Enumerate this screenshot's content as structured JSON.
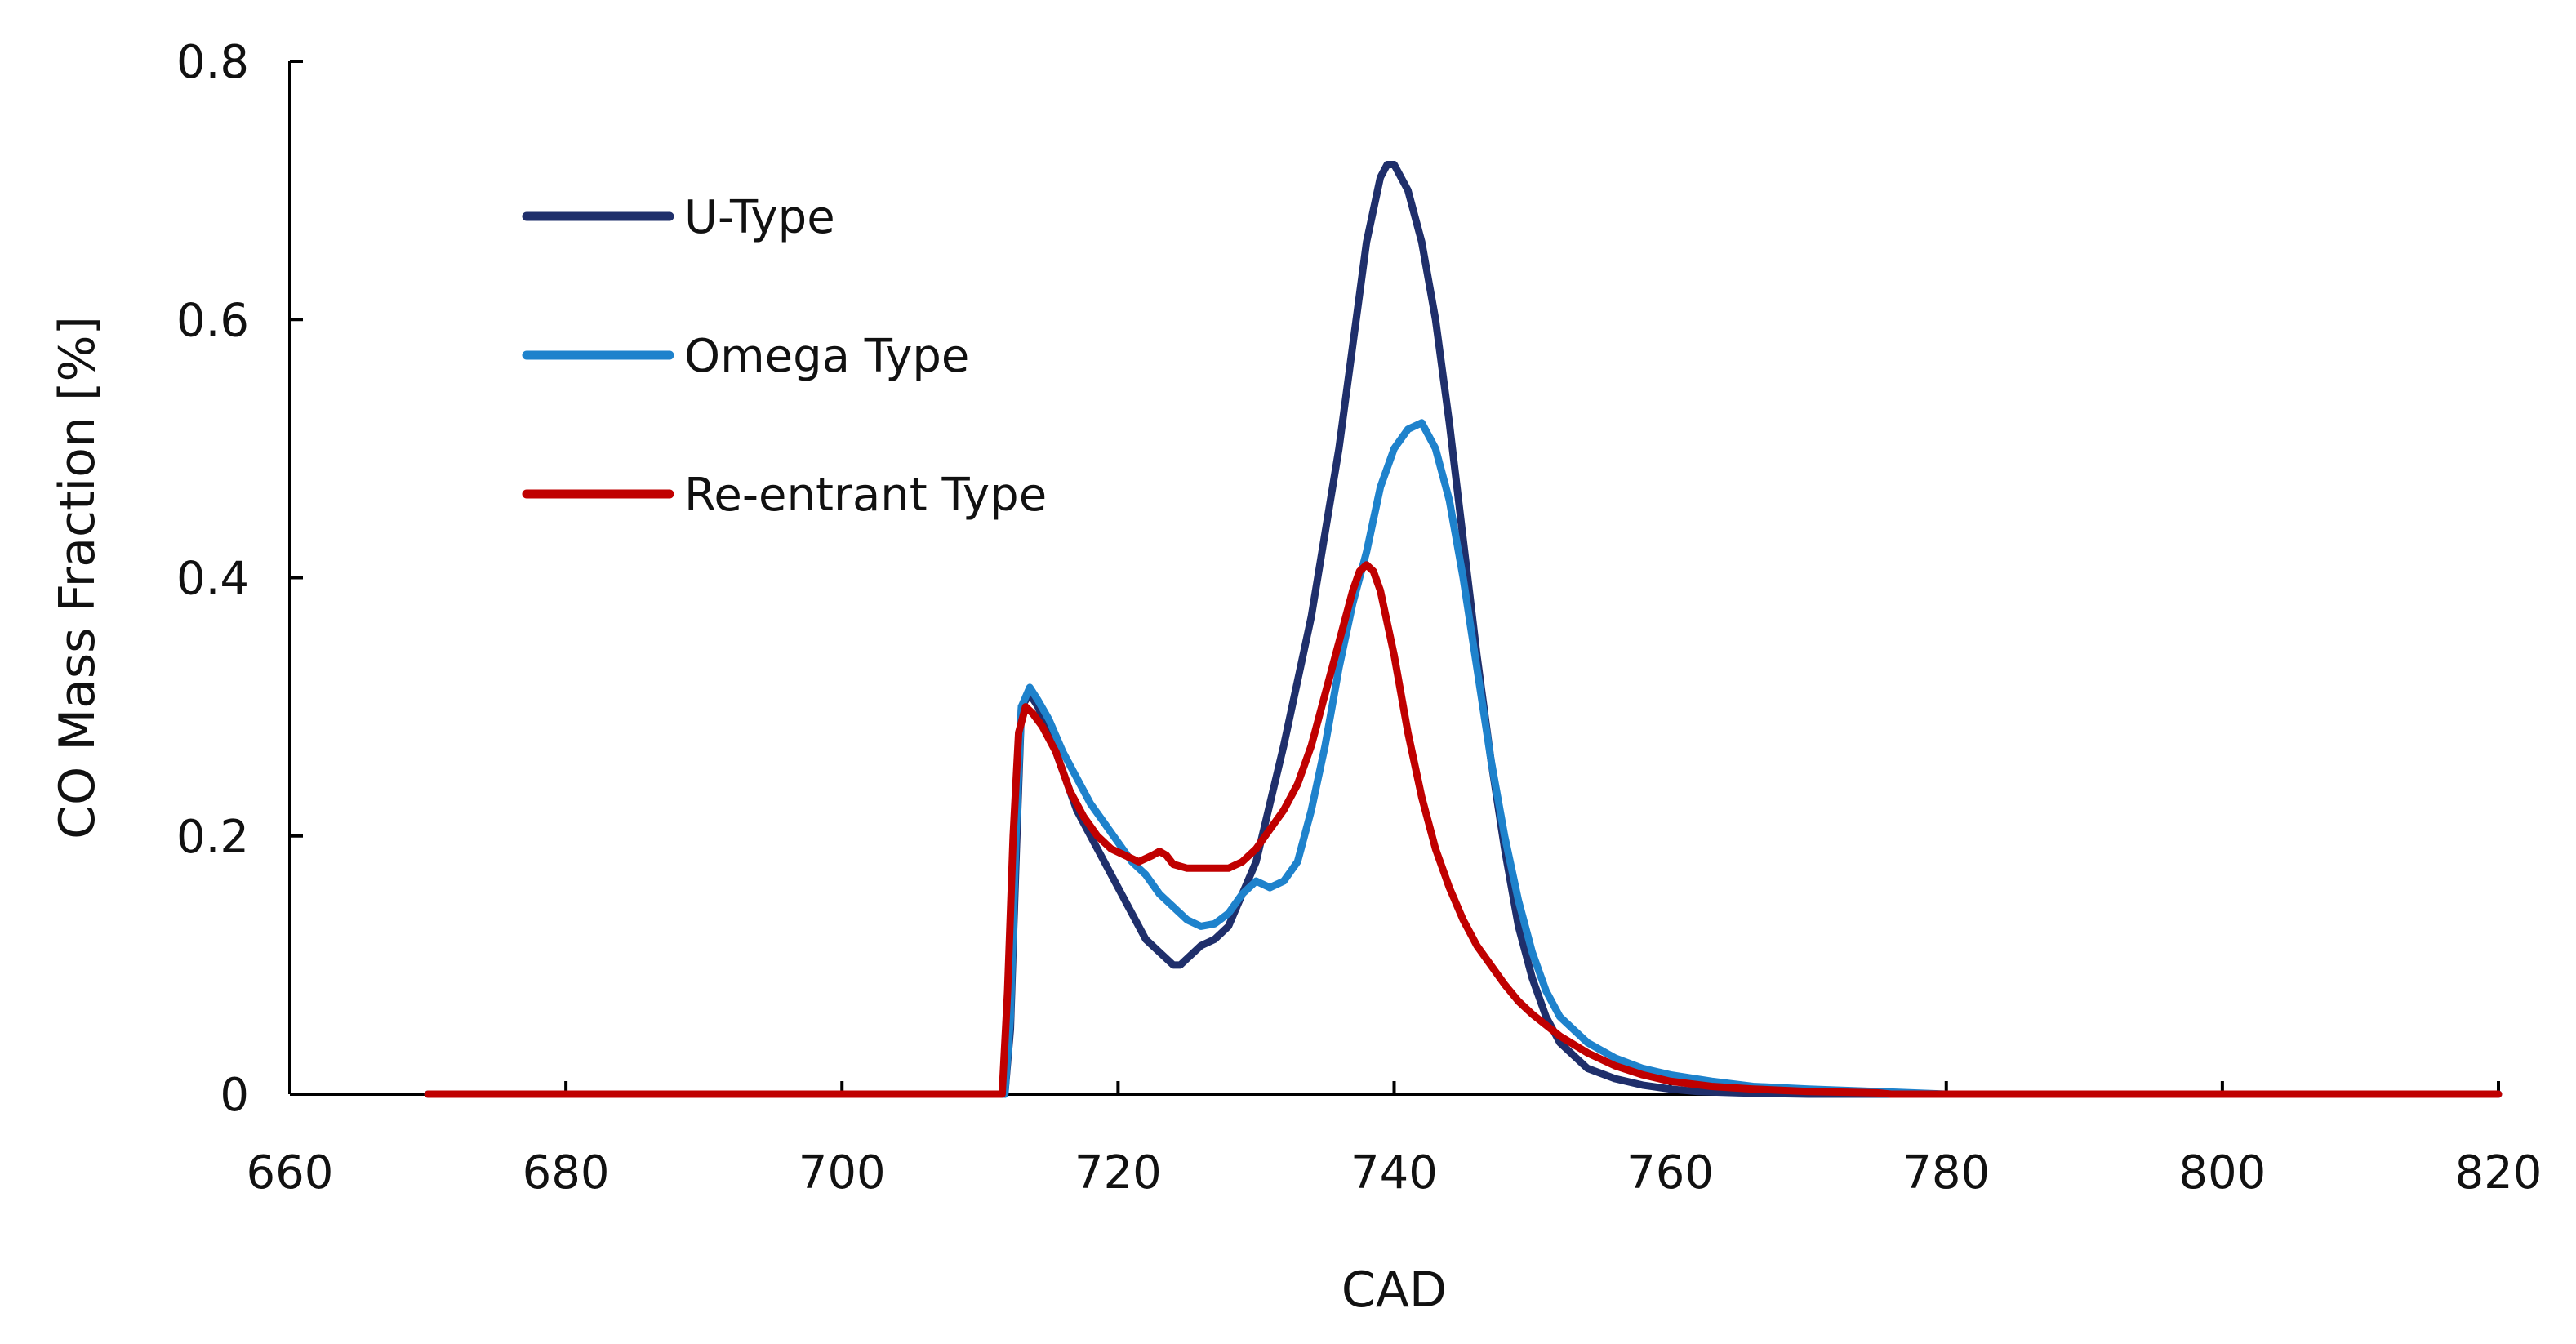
{
  "chart_data": {
    "type": "line",
    "title": "",
    "xlabel": "CAD",
    "ylabel": "CO Mass Fraction [%]",
    "xlim": [
      660,
      820
    ],
    "ylim": [
      0,
      0.8
    ],
    "xticks": [
      660,
      680,
      700,
      720,
      740,
      760,
      780,
      800,
      820
    ],
    "xtick_labels": [
      "660",
      "680",
      "700",
      "720",
      "740",
      "760",
      "780",
      "800",
      "820"
    ],
    "yticks": [
      0,
      0.2,
      0.4,
      0.6,
      0.8
    ],
    "ytick_labels": [
      "0",
      "0.2",
      "0.4",
      "0.6",
      "0.8"
    ],
    "grid": false,
    "legend_position": "top-left",
    "series": [
      {
        "name": "U-Type",
        "color": "#1f2f6b",
        "x": [
          670,
          700,
          711.8,
          712.2,
          712.6,
          713.0,
          713.6,
          714.2,
          715.0,
          716.0,
          717.0,
          718.0,
          719.0,
          720.0,
          721.0,
          722.0,
          723.0,
          724.0,
          724.5,
          725.0,
          726.0,
          727.0,
          728.0,
          730.0,
          732.0,
          734.0,
          736.0,
          737.0,
          738.0,
          739.0,
          739.5,
          740.0,
          741.0,
          742.0,
          743.0,
          744.0,
          745.0,
          746.0,
          747.0,
          748.0,
          749.0,
          750.0,
          751.0,
          752.0,
          753.0,
          754.0,
          756.0,
          758.0,
          760.0,
          762.0,
          765.0,
          770.0,
          775.0,
          780.0,
          800.0,
          820.0
        ],
        "y": [
          0.0,
          0.0,
          0.0,
          0.05,
          0.18,
          0.3,
          0.31,
          0.3,
          0.28,
          0.25,
          0.22,
          0.2,
          0.18,
          0.16,
          0.14,
          0.12,
          0.11,
          0.1,
          0.1,
          0.105,
          0.115,
          0.12,
          0.13,
          0.18,
          0.27,
          0.37,
          0.5,
          0.58,
          0.66,
          0.71,
          0.72,
          0.72,
          0.7,
          0.66,
          0.6,
          0.52,
          0.43,
          0.34,
          0.26,
          0.19,
          0.13,
          0.09,
          0.06,
          0.04,
          0.03,
          0.02,
          0.012,
          0.007,
          0.004,
          0.002,
          0.001,
          0.0,
          0.0,
          0.0,
          0.0,
          0.0
        ]
      },
      {
        "name": "Omega Type",
        "color": "#1e82cc",
        "x": [
          670,
          700,
          711.8,
          712.2,
          712.6,
          713.0,
          713.6,
          714.2,
          715.0,
          716.0,
          717.0,
          718.0,
          719.0,
          720.0,
          721.0,
          722.0,
          723.0,
          724.0,
          725.0,
          726.0,
          727.0,
          728.0,
          729.0,
          730.0,
          731.0,
          732.0,
          733.0,
          734.0,
          735.0,
          736.0,
          737.0,
          738.0,
          739.0,
          740.0,
          741.0,
          742.0,
          743.0,
          744.0,
          745.0,
          746.0,
          747.0,
          748.0,
          749.0,
          750.0,
          751.0,
          752.0,
          754.0,
          756.0,
          758.0,
          760.0,
          763.0,
          766.0,
          770.0,
          775.0,
          780.0,
          800.0,
          820.0
        ],
        "y": [
          0.0,
          0.0,
          0.0,
          0.06,
          0.2,
          0.3,
          0.315,
          0.305,
          0.29,
          0.265,
          0.245,
          0.225,
          0.21,
          0.195,
          0.18,
          0.17,
          0.155,
          0.145,
          0.135,
          0.13,
          0.132,
          0.14,
          0.155,
          0.165,
          0.16,
          0.165,
          0.18,
          0.22,
          0.27,
          0.33,
          0.38,
          0.42,
          0.47,
          0.5,
          0.515,
          0.52,
          0.5,
          0.46,
          0.4,
          0.33,
          0.26,
          0.2,
          0.15,
          0.11,
          0.08,
          0.06,
          0.04,
          0.028,
          0.02,
          0.015,
          0.01,
          0.006,
          0.004,
          0.002,
          0.0,
          0.0,
          0.0
        ]
      },
      {
        "name": "Re-entrant Type",
        "color": "#c00000",
        "x": [
          670,
          700,
          711.6,
          712.0,
          712.4,
          712.8,
          713.3,
          713.8,
          714.5,
          715.5,
          716.5,
          717.5,
          718.5,
          719.5,
          720.5,
          721.5,
          722.5,
          723.0,
          723.5,
          724.0,
          725.0,
          726.0,
          727.0,
          728.0,
          729.0,
          730.0,
          731.0,
          732.0,
          733.0,
          734.0,
          735.0,
          736.0,
          737.0,
          737.5,
          738.0,
          738.5,
          739.0,
          740.0,
          741.0,
          742.0,
          743.0,
          744.0,
          745.0,
          746.0,
          747.0,
          748.0,
          749.0,
          750.0,
          752.0,
          754.0,
          756.0,
          758.0,
          760.0,
          763.0,
          766.0,
          770.0,
          775.0,
          776.0,
          800.0,
          820.0
        ],
        "y": [
          0.0,
          0.0,
          0.0,
          0.08,
          0.2,
          0.28,
          0.3,
          0.295,
          0.285,
          0.265,
          0.235,
          0.215,
          0.2,
          0.19,
          0.185,
          0.18,
          0.185,
          0.188,
          0.185,
          0.178,
          0.175,
          0.175,
          0.175,
          0.175,
          0.18,
          0.19,
          0.205,
          0.22,
          0.24,
          0.27,
          0.31,
          0.35,
          0.39,
          0.405,
          0.41,
          0.405,
          0.39,
          0.34,
          0.28,
          0.23,
          0.19,
          0.16,
          0.135,
          0.115,
          0.1,
          0.085,
          0.072,
          0.062,
          0.045,
          0.032,
          0.022,
          0.015,
          0.01,
          0.006,
          0.004,
          0.002,
          0.001,
          0.0,
          0.0,
          0.0
        ]
      }
    ]
  }
}
